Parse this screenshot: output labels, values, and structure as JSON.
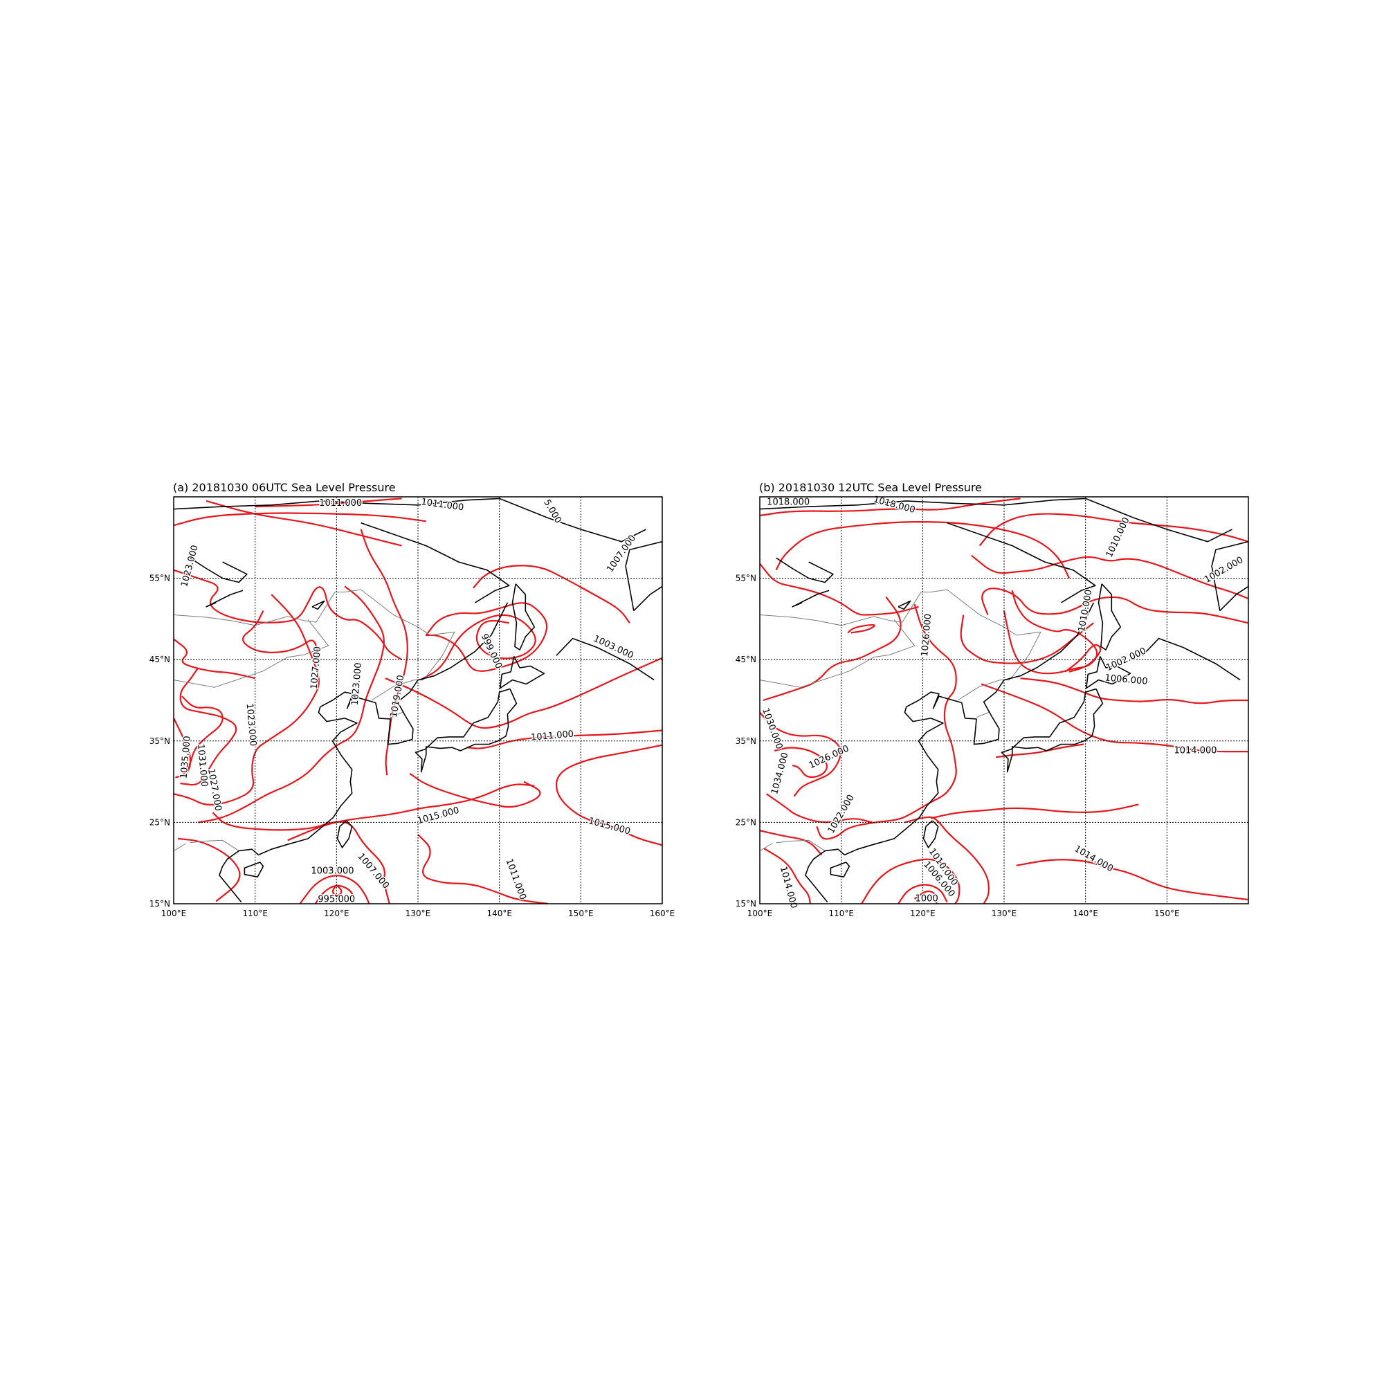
{
  "colors": {
    "isobar": "#e8151b",
    "coastline": "#000000",
    "border": "#7a7a7a",
    "gridline": "#000000",
    "background": "#ffffff"
  },
  "panels": [
    {
      "title": "(a) 20181030 06UTC Sea Level Pressure",
      "lon_range": [
        100,
        160
      ],
      "lat_range": [
        15,
        65
      ],
      "lon_ticks": [
        "100°E",
        "110°E",
        "120°E",
        "130°E",
        "140°E",
        "150°E",
        "160°E"
      ],
      "lat_ticks": [
        "15°N",
        "25°N",
        "35°N",
        "45°N",
        "55°N"
      ],
      "contour_labels": [
        {
          "text": "1011.000",
          "lon": 120.5,
          "lat": 64.2,
          "rot": 0
        },
        {
          "text": "1011.000",
          "lon": 133.0,
          "lat": 64.0,
          "rot": 8
        },
        {
          "text": "5.000",
          "lon": 146.5,
          "lat": 63.2,
          "rot": 60
        },
        {
          "text": "1007.000",
          "lon": 155.0,
          "lat": 58.0,
          "rot": -55
        },
        {
          "text": "1023.000",
          "lon": 102.0,
          "lat": 56.5,
          "rot": -75
        },
        {
          "text": "1003.000",
          "lon": 154.0,
          "lat": 46.5,
          "rot": 25
        },
        {
          "text": "999.000",
          "lon": 139.0,
          "lat": 46.0,
          "rot": 65
        },
        {
          "text": "1027.000",
          "lon": 117.5,
          "lat": 44.0,
          "rot": -85
        },
        {
          "text": "1023.000",
          "lon": 122.5,
          "lat": 42.0,
          "rot": -85
        },
        {
          "text": "1019.000",
          "lon": 127.5,
          "lat": 40.5,
          "rot": -80
        },
        {
          "text": "1023.000",
          "lon": 109.5,
          "lat": 37.0,
          "rot": 85
        },
        {
          "text": "1035.000",
          "lon": 101.5,
          "lat": 33.0,
          "rot": -85
        },
        {
          "text": "1031.000",
          "lon": 103.5,
          "lat": 32.0,
          "rot": 85
        },
        {
          "text": "1027.000",
          "lon": 105.0,
          "lat": 29.0,
          "rot": 80
        },
        {
          "text": "1011.000",
          "lon": 146.5,
          "lat": 35.6,
          "rot": -5
        },
        {
          "text": "1015.000",
          "lon": 132.5,
          "lat": 25.8,
          "rot": -15
        },
        {
          "text": "1015.000",
          "lon": 153.5,
          "lat": 24.5,
          "rot": 15
        },
        {
          "text": "1011.000",
          "lon": 142.0,
          "lat": 18.0,
          "rot": 70
        },
        {
          "text": "1003.000",
          "lon": 119.5,
          "lat": 19.0,
          "rot": 0
        },
        {
          "text": "1007.000",
          "lon": 124.5,
          "lat": 19.0,
          "rot": 50
        },
        {
          "text": "995.000",
          "lon": 120.0,
          "lat": 15.5,
          "rot": 0
        }
      ]
    },
    {
      "title": "(b) 20181030 12UTC Sea Level Pressure",
      "lon_range": [
        100,
        160
      ],
      "lat_range": [
        15,
        65
      ],
      "lon_ticks": [
        "100°E",
        "110°E",
        "120°E",
        "130°E",
        "140°E",
        "150°E"
      ],
      "lat_ticks": [
        "15°N",
        "25°N",
        "35°N",
        "45°N",
        "55°N"
      ],
      "contour_labels": [
        {
          "text": "1018.000",
          "lon": 103.5,
          "lat": 64.3,
          "rot": 0
        },
        {
          "text": "1018.000",
          "lon": 116.5,
          "lat": 64.0,
          "rot": 15
        },
        {
          "text": "1010.000",
          "lon": 144.0,
          "lat": 60.0,
          "rot": -65
        },
        {
          "text": "1002.000",
          "lon": 157.0,
          "lat": 56.0,
          "rot": -30
        },
        {
          "text": "1010.000",
          "lon": 140.0,
          "lat": 51.0,
          "rot": -80
        },
        {
          "text": "1026.000",
          "lon": 120.5,
          "lat": 48.0,
          "rot": -85
        },
        {
          "text": "1002.000",
          "lon": 145.0,
          "lat": 45.0,
          "rot": -25
        },
        {
          "text": "1006.000",
          "lon": 145.0,
          "lat": 42.5,
          "rot": 5
        },
        {
          "text": "1030.000",
          "lon": 101.5,
          "lat": 36.5,
          "rot": 70
        },
        {
          "text": "1014.000",
          "lon": 153.5,
          "lat": 33.8,
          "rot": 0
        },
        {
          "text": "1026.000",
          "lon": 108.5,
          "lat": 33.0,
          "rot": -25
        },
        {
          "text": "1034.000",
          "lon": 102.5,
          "lat": 31.0,
          "rot": -75
        },
        {
          "text": "1022.000",
          "lon": 110.0,
          "lat": 26.0,
          "rot": -60
        },
        {
          "text": "1014.000",
          "lon": 141.0,
          "lat": 20.5,
          "rot": 30
        },
        {
          "text": "1010.000",
          "lon": 122.5,
          "lat": 19.5,
          "rot": 55
        },
        {
          "text": "1006.000",
          "lon": 122.0,
          "lat": 18.0,
          "rot": 50
        },
        {
          "text": "1014.000",
          "lon": 103.5,
          "lat": 17.0,
          "rot": 75
        },
        {
          "text": "1000",
          "lon": 120.5,
          "lat": 15.6,
          "rot": 0
        }
      ]
    }
  ]
}
